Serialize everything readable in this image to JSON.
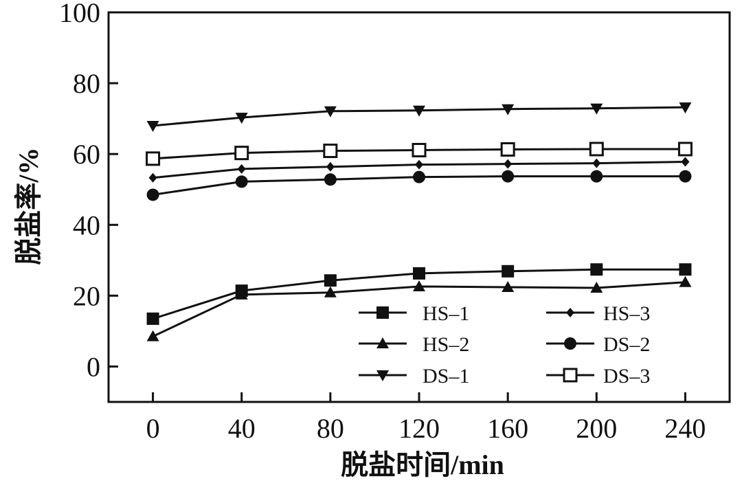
{
  "chart_data": {
    "type": "line",
    "xlabel": "脱盐时间/min",
    "ylabel": "脱盐率/%",
    "xlim": [
      -20,
      260
    ],
    "ylim": [
      -10,
      100
    ],
    "xticks": [
      0,
      40,
      80,
      120,
      160,
      200,
      240
    ],
    "yticks": [
      0,
      20,
      40,
      60,
      80,
      100
    ],
    "x": [
      0,
      40,
      80,
      120,
      160,
      200,
      240
    ],
    "legend_position": "bottom-right",
    "grid": false,
    "series": [
      {
        "name": "HS-1",
        "marker": "square-filled",
        "values": [
          13.5,
          21.4,
          24.3,
          26.3,
          26.9,
          27.4,
          27.4
        ]
      },
      {
        "name": "HS-3",
        "marker": "diamond-filled",
        "values": [
          53.3,
          55.8,
          56.4,
          57.0,
          57.2,
          57.4,
          57.8
        ]
      },
      {
        "name": "HS-2",
        "marker": "triangle-up-filled",
        "values": [
          8.5,
          20.3,
          20.9,
          22.6,
          22.4,
          22.2,
          23.8
        ]
      },
      {
        "name": "DS-2",
        "marker": "circle-filled",
        "values": [
          48.5,
          52.2,
          52.8,
          53.5,
          53.7,
          53.7,
          53.7
        ]
      },
      {
        "name": "DS-1",
        "marker": "triangle-down-filled",
        "values": [
          68.0,
          70.3,
          72.1,
          72.3,
          72.7,
          72.9,
          73.2
        ]
      },
      {
        "name": "DS-3",
        "marker": "square-open",
        "values": [
          58.7,
          60.3,
          60.9,
          61.1,
          61.3,
          61.4,
          61.4
        ]
      }
    ]
  }
}
